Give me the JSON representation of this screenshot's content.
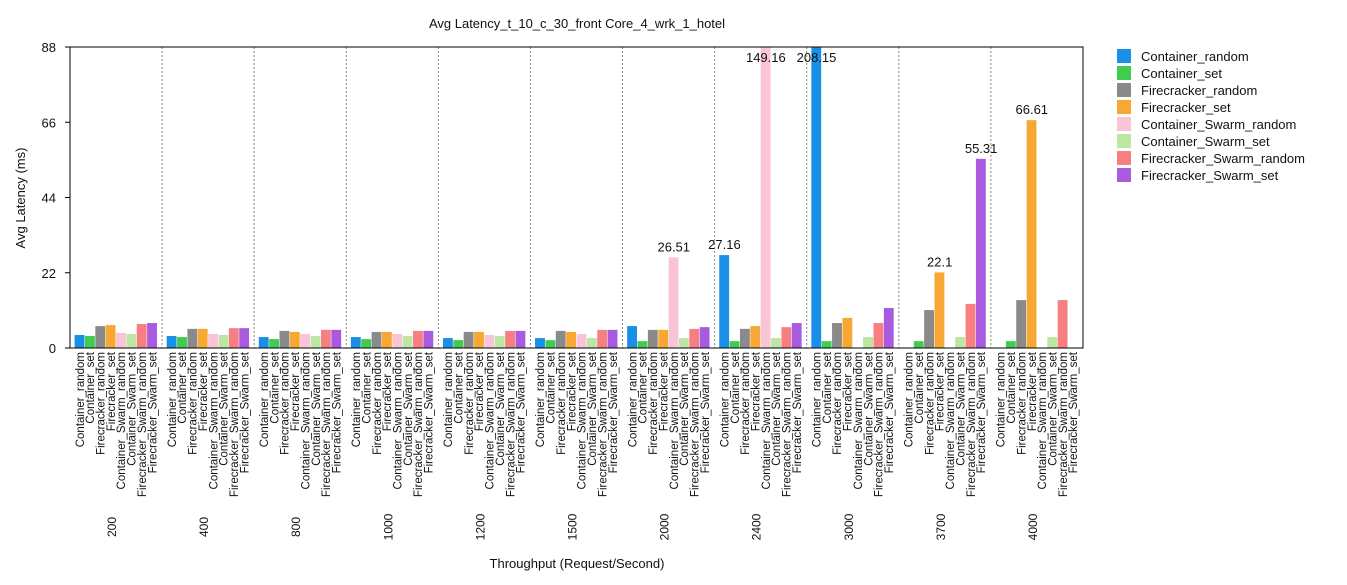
{
  "chart_data": {
    "type": "bar",
    "title": "Avg Latency_t_10_c_30_front Core_4_wrk_1_hotel",
    "x_label": "Throughput (Request/Second)",
    "y_label": "Avg Latency (ms)",
    "categories": [
      "200",
      "400",
      "800",
      "1000",
      "1200",
      "1500",
      "2000",
      "2400",
      "3000",
      "3700",
      "4000"
    ],
    "ylim": [
      0,
      88
    ],
    "yticks": [
      0,
      22,
      44,
      66,
      88
    ],
    "group_separators": true,
    "series": [
      {
        "name": "Container_random",
        "color": "#1a8fe8",
        "values": [
          3.8,
          3.5,
          3.2,
          3.2,
          2.9,
          2.9,
          6.4,
          27.16,
          208.15,
          0,
          0
        ],
        "value_labels": [
          null,
          null,
          null,
          null,
          null,
          null,
          null,
          "27.16",
          "208.15",
          null,
          null
        ]
      },
      {
        "name": "Container_set",
        "color": "#3fcc4f",
        "values": [
          3.5,
          3.2,
          2.6,
          2.6,
          2.3,
          2.3,
          2.0,
          2.0,
          2.0,
          2.0,
          2.0
        ],
        "value_labels": [
          null,
          null,
          null,
          null,
          null,
          null,
          null,
          null,
          null,
          null,
          null
        ]
      },
      {
        "name": "Firecracker_random",
        "color": "#8a8a8a",
        "values": [
          6.4,
          5.6,
          5.0,
          4.7,
          4.7,
          5.0,
          5.3,
          5.6,
          7.3,
          11.1,
          14.0
        ],
        "value_labels": [
          null,
          null,
          null,
          null,
          null,
          null,
          null,
          null,
          null,
          null,
          null
        ]
      },
      {
        "name": "Firecracker_set",
        "color": "#f7a832",
        "values": [
          6.7,
          5.6,
          4.7,
          4.7,
          4.7,
          4.7,
          5.3,
          6.4,
          8.8,
          22.1,
          66.61
        ],
        "value_labels": [
          null,
          null,
          null,
          null,
          null,
          null,
          null,
          null,
          null,
          "22.1",
          "66.61"
        ]
      },
      {
        "name": "Container_Swarm_random",
        "color": "#f8c4d6",
        "values": [
          4.4,
          4.1,
          4.1,
          4.1,
          3.8,
          4.1,
          26.51,
          149.16,
          0,
          0,
          0
        ],
        "value_labels": [
          null,
          null,
          null,
          null,
          null,
          null,
          "26.51",
          "149.16",
          null,
          null,
          null
        ]
      },
      {
        "name": "Container_Swarm_set",
        "color": "#bde5a4",
        "values": [
          4.1,
          3.8,
          3.5,
          3.5,
          3.5,
          2.9,
          2.9,
          2.9,
          3.2,
          3.2,
          3.2
        ],
        "value_labels": [
          null,
          null,
          null,
          null,
          null,
          null,
          null,
          null,
          null,
          null,
          null
        ]
      },
      {
        "name": "Firecracker_Swarm_random",
        "color": "#f77f82",
        "values": [
          7.0,
          5.8,
          5.3,
          5.0,
          5.0,
          5.3,
          5.6,
          6.1,
          7.3,
          12.9,
          14.0
        ],
        "value_labels": [
          null,
          null,
          null,
          null,
          null,
          null,
          null,
          null,
          null,
          null,
          null
        ]
      },
      {
        "name": "Firecracker_Swarm_set",
        "color": "#a95be0",
        "values": [
          7.3,
          5.8,
          5.3,
          5.0,
          5.0,
          5.3,
          6.1,
          7.3,
          11.7,
          55.31,
          0
        ],
        "value_labels": [
          null,
          null,
          null,
          null,
          null,
          null,
          null,
          null,
          null,
          "55.31",
          null
        ]
      }
    ]
  }
}
